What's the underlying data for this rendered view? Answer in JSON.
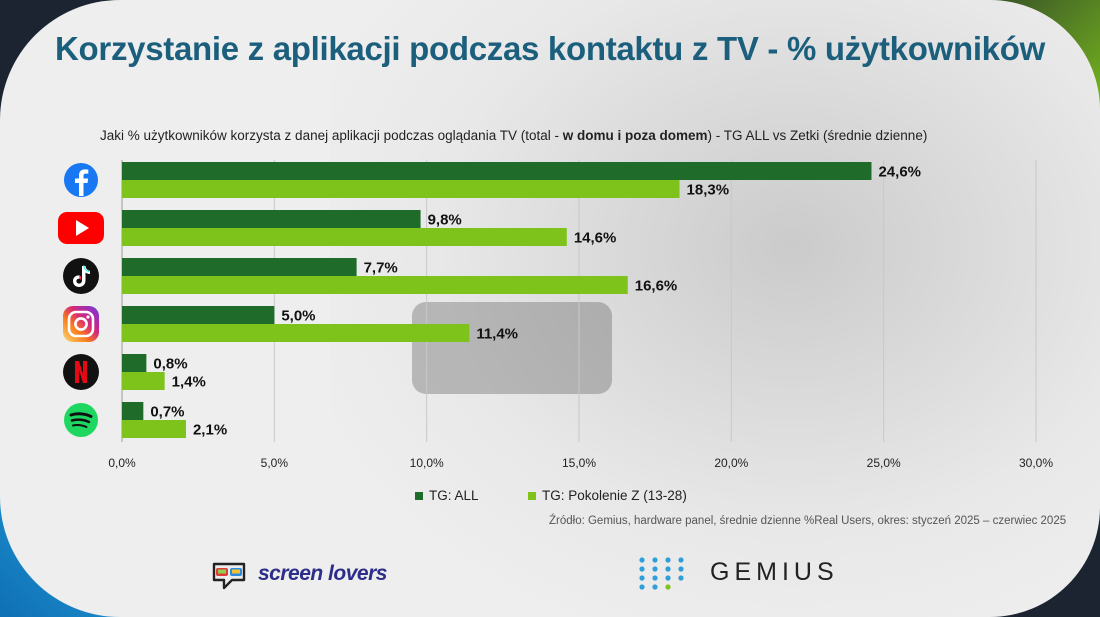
{
  "title": "Korzystanie z aplikacji podczas kontaktu z TV - % użytkowników",
  "subtitle": {
    "part1": "Jaki % użytkowników korzysta z danej aplikacji podczas oglądania TV (total - ",
    "bold": "w domu i poza domem",
    "part2": ") - TG ALL vs Zetki (średnie dzienne)"
  },
  "source": "Źródło: Gemius, hardware panel, średnie dzienne %Real Users, okres: styczeń 2025 – czerwiec 2025",
  "logos": {
    "screenlovers": "screen lovers",
    "gemius": "GEMIUS"
  },
  "colors": {
    "tg_all": "#1e6b2a",
    "pokolenie_z": "#7ec31c",
    "title": "#1c5f7d"
  },
  "icons": [
    "facebook-icon",
    "youtube-icon",
    "tiktok-icon",
    "instagram-icon",
    "netflix-icon",
    "spotify-icon"
  ],
  "chart_data": {
    "type": "bar",
    "orientation": "horizontal",
    "categories": [
      "Facebook",
      "YouTube",
      "TikTok",
      "Instagram",
      "Netflix",
      "Spotify"
    ],
    "series": [
      {
        "name": "TG: ALL",
        "values": [
          24.6,
          9.8,
          7.7,
          5.0,
          0.8,
          0.7
        ],
        "labels": [
          "24,6%",
          "9,8%",
          "7,7%",
          "5,0%",
          "0,8%",
          "0,7%"
        ]
      },
      {
        "name": "TG: Pokolenie Z (13-28)",
        "values": [
          18.3,
          14.6,
          16.6,
          11.4,
          1.4,
          2.1
        ],
        "labels": [
          "18,3%",
          "14,6%",
          "16,6%",
          "11,4%",
          "1,4%",
          "2,1%"
        ]
      }
    ],
    "xlim": [
      0,
      30
    ],
    "xticks": [
      0,
      5,
      10,
      15,
      20,
      25,
      30
    ],
    "xtick_labels": [
      "0,0%",
      "5,0%",
      "10,0%",
      "15,0%",
      "20,0%",
      "25,0%",
      "30,0%"
    ],
    "grid": "vertical",
    "legend": "bottom"
  }
}
